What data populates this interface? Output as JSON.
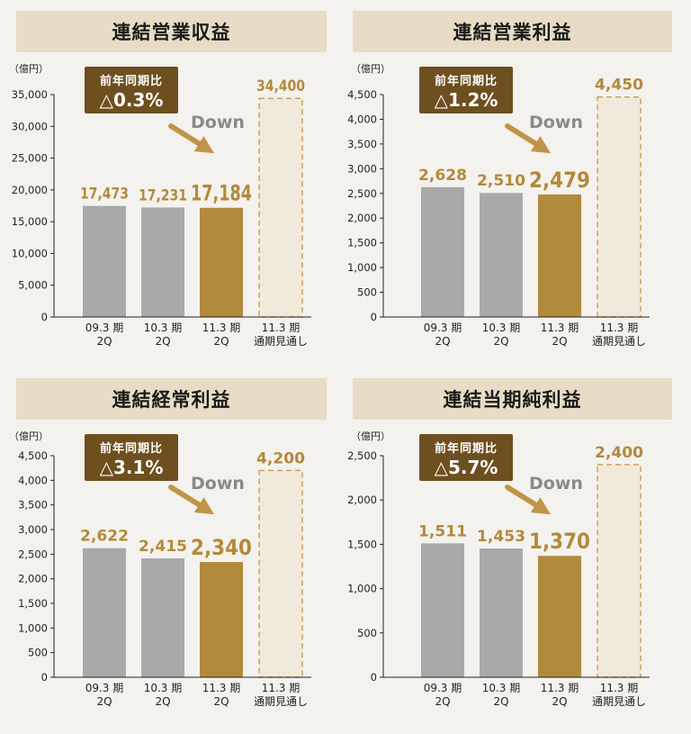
{
  "colors": {
    "actual_bar": "#a9a9a9",
    "current_bar": "#b28a3c",
    "forecast_fill": "#f1e9da",
    "forecast_border": "#c9a35c",
    "value_label": "#b28a3c",
    "badge_bg": "#6e4f1f",
    "arrow": "#c09448",
    "down_text": "#8a8a8a",
    "banner_bg": "#e8dcc6"
  },
  "badge_title": "前年同期比",
  "down_label": "Down",
  "chart_data": [
    {
      "type": "bar",
      "title": "連結営業収益",
      "ylabel": "（億円）",
      "ylim": [
        0,
        35000
      ],
      "yticks": [
        "35,000",
        "30,000",
        "25,000",
        "20,000",
        "15,000",
        "10,000",
        "5,000",
        "0"
      ],
      "yticks_values": [
        35000,
        30000,
        25000,
        20000,
        15000,
        10000,
        5000,
        0
      ],
      "categories": [
        [
          "09.3 期",
          "2Q"
        ],
        [
          "10.3 期",
          "2Q"
        ],
        [
          "11.3 期",
          "2Q"
        ],
        [
          "11.3 期",
          "通期見通し"
        ]
      ],
      "values": [
        17473,
        17231,
        17184,
        34400
      ],
      "value_labels": [
        "17,473",
        "17,231",
        "17,184",
        "34,400"
      ],
      "change": "△0.3%",
      "grid": false
    },
    {
      "type": "bar",
      "title": "連結営業利益",
      "ylabel": "（億円）",
      "ylim": [
        0,
        4500
      ],
      "yticks": [
        "4,500",
        "4,000",
        "3,500",
        "3,000",
        "2,500",
        "2,000",
        "1,500",
        "1,000",
        "500",
        "0"
      ],
      "yticks_values": [
        4500,
        4000,
        3500,
        3000,
        2500,
        2000,
        1500,
        1000,
        500,
        0
      ],
      "categories": [
        [
          "09.3 期",
          "2Q"
        ],
        [
          "10.3 期",
          "2Q"
        ],
        [
          "11.3 期",
          "2Q"
        ],
        [
          "11.3 期",
          "通期見通し"
        ]
      ],
      "values": [
        2628,
        2510,
        2479,
        4450
      ],
      "value_labels": [
        "2,628",
        "2,510",
        "2,479",
        "4,450"
      ],
      "change": "△1.2%",
      "grid": false
    },
    {
      "type": "bar",
      "title": "連結経常利益",
      "ylabel": "（億円）",
      "ylim": [
        0,
        4500
      ],
      "yticks": [
        "4,500",
        "4,000",
        "3,500",
        "3,000",
        "2,500",
        "2,000",
        "1,500",
        "1,000",
        "500",
        "0"
      ],
      "yticks_values": [
        4500,
        4000,
        3500,
        3000,
        2500,
        2000,
        1500,
        1000,
        500,
        0
      ],
      "categories": [
        [
          "09.3 期",
          "2Q"
        ],
        [
          "10.3 期",
          "2Q"
        ],
        [
          "11.3 期",
          "2Q"
        ],
        [
          "11.3 期",
          "通期見通し"
        ]
      ],
      "values": [
        2622,
        2415,
        2340,
        4200
      ],
      "value_labels": [
        "2,622",
        "2,415",
        "2,340",
        "4,200"
      ],
      "change": "△3.1%",
      "grid": false
    },
    {
      "type": "bar",
      "title": "連結当期純利益",
      "ylabel": "（億円）",
      "ylim": [
        0,
        2500
      ],
      "yticks": [
        "2,500",
        "2,000",
        "1,500",
        "1,000",
        "500",
        "0"
      ],
      "yticks_values": [
        2500,
        2000,
        1500,
        1000,
        500,
        0
      ],
      "categories": [
        [
          "09.3 期",
          "2Q"
        ],
        [
          "10.3 期",
          "2Q"
        ],
        [
          "11.3 期",
          "2Q"
        ],
        [
          "11.3 期",
          "通期見通し"
        ]
      ],
      "values": [
        1511,
        1453,
        1370,
        2400
      ],
      "value_labels": [
        "1,511",
        "1,453",
        "1,370",
        "2,400"
      ],
      "change": "△5.7%",
      "grid": false
    }
  ]
}
